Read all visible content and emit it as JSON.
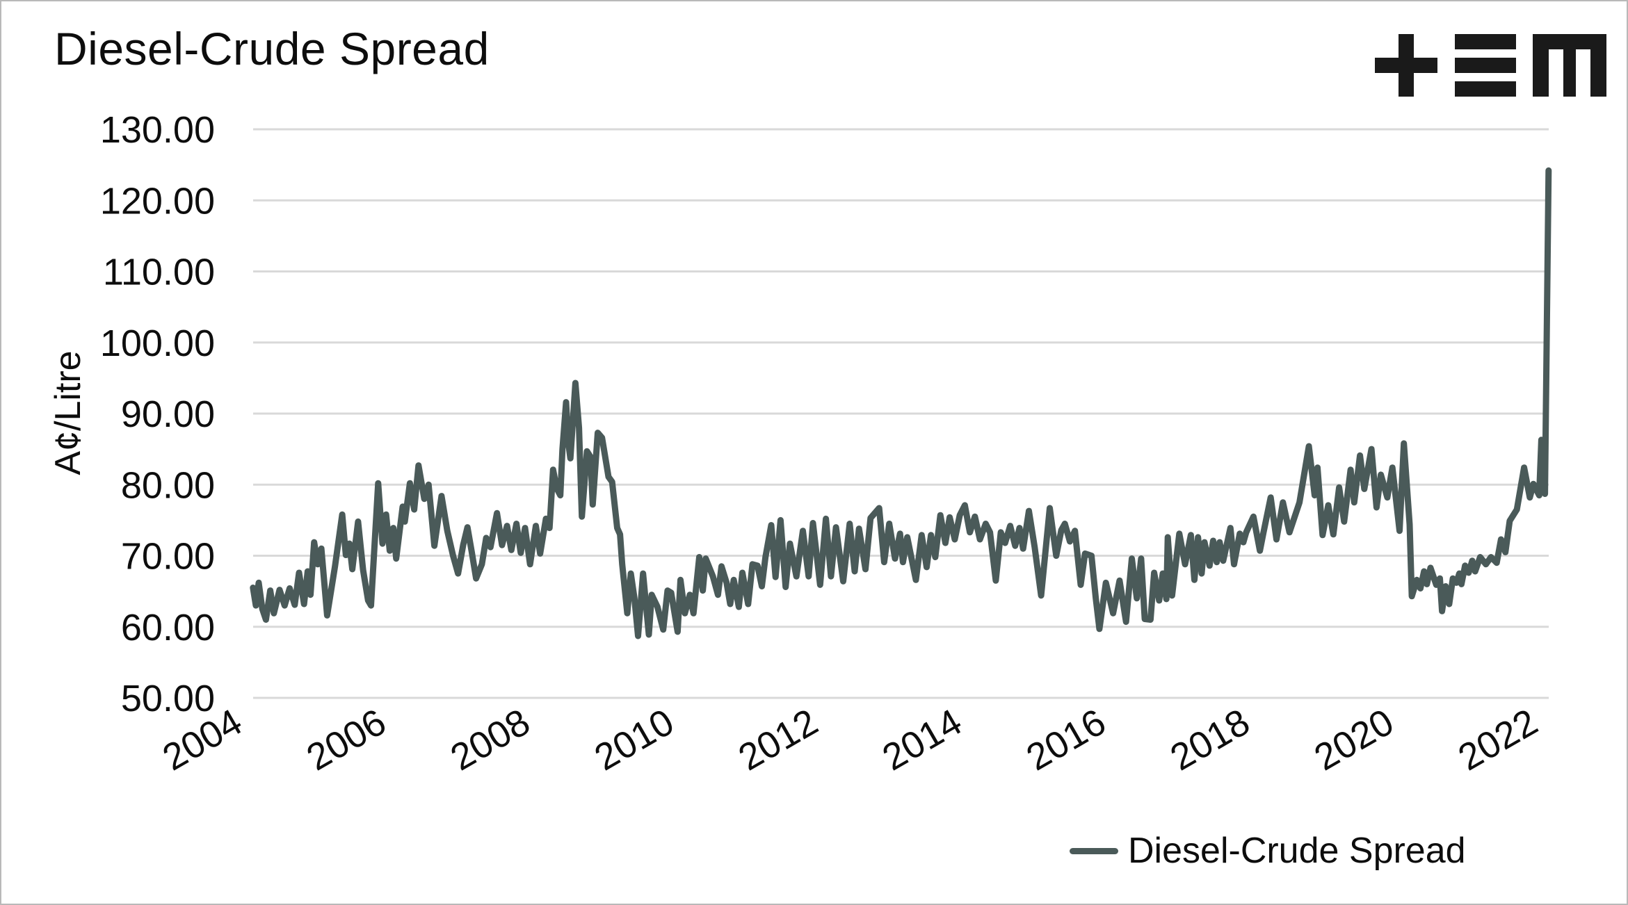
{
  "header": {
    "logo_name": "tem-logo",
    "logo_color": "#1a1a1a"
  },
  "chart_data": {
    "type": "line",
    "title": "Diesel-Crude Spread",
    "xlabel": "",
    "ylabel": "A¢/Litre",
    "grid": true,
    "legend_position": "bottom-right",
    "ylim": [
      50,
      130
    ],
    "y_ticks": [
      130,
      120,
      110,
      100,
      90,
      80,
      70,
      60,
      50
    ],
    "y_tick_labels": [
      "130.00",
      "120.00",
      "110.00",
      "100.00",
      "90.00",
      "80.00",
      "70.00",
      "60.00",
      "50.00"
    ],
    "x_ticks": [
      2004,
      2006,
      2008,
      2010,
      2012,
      2014,
      2016,
      2018,
      2020,
      2022
    ],
    "x_tick_labels": [
      "2004",
      "2006",
      "2008",
      "2010",
      "2012",
      "2014",
      "2016",
      "2018",
      "2020",
      "2022"
    ],
    "x_range": [
      2004.5,
      2022.5
    ],
    "line_color": "#4a5a59",
    "gridline_color": "#d9d9d9",
    "series": [
      {
        "name": "Diesel-Crude Spread",
        "color": "#4a5a59",
        "points": [
          [
            2004.5,
            65.5
          ],
          [
            2004.54,
            63.0
          ],
          [
            2004.58,
            66.2
          ],
          [
            2004.63,
            62.5
          ],
          [
            2004.68,
            61.0
          ],
          [
            2004.74,
            65.1
          ],
          [
            2004.79,
            61.9
          ],
          [
            2004.87,
            65.2
          ],
          [
            2004.94,
            63.0
          ],
          [
            2005.01,
            65.4
          ],
          [
            2005.08,
            63.1
          ],
          [
            2005.14,
            67.6
          ],
          [
            2005.21,
            63.2
          ],
          [
            2005.26,
            67.8
          ],
          [
            2005.3,
            64.5
          ],
          [
            2005.35,
            71.9
          ],
          [
            2005.4,
            68.8
          ],
          [
            2005.45,
            71.0
          ],
          [
            2005.5,
            65.1
          ],
          [
            2005.53,
            61.6
          ],
          [
            2005.64,
            68.5
          ],
          [
            2005.74,
            75.8
          ],
          [
            2005.79,
            70.1
          ],
          [
            2005.84,
            71.7
          ],
          [
            2005.88,
            68.1
          ],
          [
            2005.96,
            74.8
          ],
          [
            2006.03,
            68.0
          ],
          [
            2006.1,
            63.7
          ],
          [
            2006.14,
            63.0
          ],
          [
            2006.24,
            80.2
          ],
          [
            2006.3,
            71.7
          ],
          [
            2006.35,
            75.8
          ],
          [
            2006.4,
            70.7
          ],
          [
            2006.45,
            73.9
          ],
          [
            2006.49,
            69.6
          ],
          [
            2006.58,
            76.9
          ],
          [
            2006.61,
            74.8
          ],
          [
            2006.68,
            80.2
          ],
          [
            2006.74,
            76.5
          ],
          [
            2006.8,
            82.7
          ],
          [
            2006.88,
            78.0
          ],
          [
            2006.94,
            80.0
          ],
          [
            2007.02,
            71.4
          ],
          [
            2007.12,
            78.4
          ],
          [
            2007.2,
            73.5
          ],
          [
            2007.28,
            70.0
          ],
          [
            2007.35,
            67.5
          ],
          [
            2007.42,
            71.5
          ],
          [
            2007.48,
            74.0
          ],
          [
            2007.54,
            70.5
          ],
          [
            2007.6,
            66.8
          ],
          [
            2007.68,
            68.8
          ],
          [
            2007.74,
            72.5
          ],
          [
            2007.8,
            71.2
          ],
          [
            2007.89,
            76.0
          ],
          [
            2007.96,
            71.5
          ],
          [
            2008.03,
            74.2
          ],
          [
            2008.09,
            70.8
          ],
          [
            2008.16,
            74.5
          ],
          [
            2008.22,
            70.4
          ],
          [
            2008.28,
            73.9
          ],
          [
            2008.35,
            68.8
          ],
          [
            2008.43,
            74.2
          ],
          [
            2008.49,
            70.3
          ],
          [
            2008.57,
            75.2
          ],
          [
            2008.62,
            73.9
          ],
          [
            2008.67,
            82.1
          ],
          [
            2008.72,
            79.5
          ],
          [
            2008.77,
            78.5
          ],
          [
            2008.8,
            85.0
          ],
          [
            2008.85,
            91.6
          ],
          [
            2008.88,
            86.0
          ],
          [
            2008.91,
            83.7
          ],
          [
            2008.98,
            94.3
          ],
          [
            2009.03,
            88.0
          ],
          [
            2009.07,
            75.5
          ],
          [
            2009.14,
            84.7
          ],
          [
            2009.19,
            83.9
          ],
          [
            2009.22,
            77.2
          ],
          [
            2009.29,
            87.3
          ],
          [
            2009.35,
            86.6
          ],
          [
            2009.44,
            81.1
          ],
          [
            2009.49,
            80.4
          ],
          [
            2009.56,
            73.9
          ],
          [
            2009.6,
            73.0
          ],
          [
            2009.63,
            68.8
          ],
          [
            2009.7,
            61.9
          ],
          [
            2009.75,
            67.5
          ],
          [
            2009.8,
            64.0
          ],
          [
            2009.85,
            58.7
          ],
          [
            2009.92,
            67.5
          ],
          [
            2010.0,
            58.9
          ],
          [
            2010.04,
            64.5
          ],
          [
            2010.12,
            62.8
          ],
          [
            2010.2,
            59.6
          ],
          [
            2010.26,
            65.1
          ],
          [
            2010.31,
            64.8
          ],
          [
            2010.4,
            59.3
          ],
          [
            2010.44,
            66.6
          ],
          [
            2010.5,
            61.9
          ],
          [
            2010.57,
            64.5
          ],
          [
            2010.62,
            61.9
          ],
          [
            2010.7,
            69.8
          ],
          [
            2010.75,
            65.1
          ],
          [
            2010.79,
            69.6
          ],
          [
            2010.89,
            67.1
          ],
          [
            2010.96,
            64.5
          ],
          [
            2011.01,
            68.5
          ],
          [
            2011.08,
            66.2
          ],
          [
            2011.13,
            63.2
          ],
          [
            2011.18,
            66.6
          ],
          [
            2011.25,
            62.8
          ],
          [
            2011.3,
            67.6
          ],
          [
            2011.38,
            63.2
          ],
          [
            2011.44,
            68.8
          ],
          [
            2011.51,
            68.6
          ],
          [
            2011.57,
            65.7
          ],
          [
            2011.62,
            69.8
          ],
          [
            2011.7,
            74.3
          ],
          [
            2011.76,
            67.0
          ],
          [
            2011.83,
            75.0
          ],
          [
            2011.9,
            65.6
          ],
          [
            2011.96,
            71.7
          ],
          [
            2012.05,
            67.1
          ],
          [
            2012.14,
            73.5
          ],
          [
            2012.22,
            67.1
          ],
          [
            2012.28,
            74.6
          ],
          [
            2012.38,
            65.9
          ],
          [
            2012.46,
            75.2
          ],
          [
            2012.53,
            67.1
          ],
          [
            2012.6,
            74.0
          ],
          [
            2012.7,
            66.4
          ],
          [
            2012.79,
            74.5
          ],
          [
            2012.86,
            67.8
          ],
          [
            2012.92,
            73.8
          ],
          [
            2013.01,
            68.1
          ],
          [
            2013.08,
            75.3
          ],
          [
            2013.2,
            76.7
          ],
          [
            2013.27,
            69.1
          ],
          [
            2013.34,
            74.5
          ],
          [
            2013.42,
            69.6
          ],
          [
            2013.49,
            73.1
          ],
          [
            2013.53,
            69.1
          ],
          [
            2013.59,
            72.6
          ],
          [
            2013.71,
            66.6
          ],
          [
            2013.79,
            72.9
          ],
          [
            2013.86,
            68.4
          ],
          [
            2013.92,
            72.9
          ],
          [
            2013.98,
            69.8
          ],
          [
            2014.05,
            75.7
          ],
          [
            2014.12,
            71.8
          ],
          [
            2014.18,
            75.4
          ],
          [
            2014.25,
            72.3
          ],
          [
            2014.32,
            75.7
          ],
          [
            2014.39,
            77.1
          ],
          [
            2014.46,
            73.3
          ],
          [
            2014.53,
            75.5
          ],
          [
            2014.6,
            72.3
          ],
          [
            2014.68,
            74.5
          ],
          [
            2014.74,
            73.3
          ],
          [
            2014.82,
            66.5
          ],
          [
            2014.89,
            73.3
          ],
          [
            2014.95,
            71.8
          ],
          [
            2015.02,
            74.2
          ],
          [
            2015.09,
            71.4
          ],
          [
            2015.15,
            73.9
          ],
          [
            2015.2,
            71.0
          ],
          [
            2015.28,
            76.3
          ],
          [
            2015.36,
            71.2
          ],
          [
            2015.45,
            64.4
          ],
          [
            2015.57,
            76.7
          ],
          [
            2015.66,
            70.0
          ],
          [
            2015.73,
            73.6
          ],
          [
            2015.78,
            74.5
          ],
          [
            2015.85,
            72.0
          ],
          [
            2015.92,
            73.5
          ],
          [
            2016.0,
            65.9
          ],
          [
            2016.06,
            70.3
          ],
          [
            2016.15,
            70.0
          ],
          [
            2016.21,
            64.0
          ],
          [
            2016.26,
            59.7
          ],
          [
            2016.35,
            66.2
          ],
          [
            2016.45,
            61.9
          ],
          [
            2016.54,
            66.5
          ],
          [
            2016.63,
            60.7
          ],
          [
            2016.71,
            69.6
          ],
          [
            2016.78,
            64.0
          ],
          [
            2016.84,
            69.6
          ],
          [
            2016.89,
            61.1
          ],
          [
            2016.97,
            61.0
          ],
          [
            2017.02,
            67.6
          ],
          [
            2017.09,
            63.7
          ],
          [
            2017.14,
            67.5
          ],
          [
            2017.19,
            63.9
          ],
          [
            2017.21,
            72.6
          ],
          [
            2017.27,
            64.4
          ],
          [
            2017.37,
            73.1
          ],
          [
            2017.45,
            68.8
          ],
          [
            2017.53,
            72.9
          ],
          [
            2017.58,
            66.6
          ],
          [
            2017.63,
            72.6
          ],
          [
            2017.68,
            67.5
          ],
          [
            2017.72,
            71.9
          ],
          [
            2017.79,
            68.6
          ],
          [
            2017.84,
            72.1
          ],
          [
            2017.89,
            69.1
          ],
          [
            2017.93,
            71.9
          ],
          [
            2017.98,
            69.3
          ],
          [
            2018.08,
            73.9
          ],
          [
            2018.13,
            68.8
          ],
          [
            2018.21,
            73.1
          ],
          [
            2018.26,
            71.9
          ],
          [
            2018.3,
            73.3
          ],
          [
            2018.4,
            75.5
          ],
          [
            2018.49,
            70.7
          ],
          [
            2018.54,
            73.3
          ],
          [
            2018.64,
            78.2
          ],
          [
            2018.72,
            72.3
          ],
          [
            2018.81,
            77.5
          ],
          [
            2018.9,
            73.3
          ],
          [
            2019.04,
            77.5
          ],
          [
            2019.17,
            85.4
          ],
          [
            2019.25,
            78.5
          ],
          [
            2019.29,
            82.4
          ],
          [
            2019.36,
            72.9
          ],
          [
            2019.44,
            77.1
          ],
          [
            2019.51,
            73.0
          ],
          [
            2019.59,
            79.6
          ],
          [
            2019.66,
            74.8
          ],
          [
            2019.75,
            82.1
          ],
          [
            2019.8,
            77.5
          ],
          [
            2019.88,
            84.1
          ],
          [
            2019.94,
            79.4
          ],
          [
            2020.04,
            85.0
          ],
          [
            2020.11,
            76.8
          ],
          [
            2020.17,
            81.4
          ],
          [
            2020.26,
            78.2
          ],
          [
            2020.33,
            82.4
          ],
          [
            2020.43,
            73.5
          ],
          [
            2020.49,
            85.8
          ],
          [
            2020.57,
            74.4
          ],
          [
            2020.6,
            64.3
          ],
          [
            2020.67,
            66.6
          ],
          [
            2020.72,
            65.4
          ],
          [
            2020.77,
            67.8
          ],
          [
            2020.81,
            66.0
          ],
          [
            2020.86,
            68.3
          ],
          [
            2020.94,
            65.9
          ],
          [
            2020.99,
            66.8
          ],
          [
            2021.02,
            62.2
          ],
          [
            2021.07,
            65.7
          ],
          [
            2021.12,
            63.2
          ],
          [
            2021.17,
            66.8
          ],
          [
            2021.22,
            66.2
          ],
          [
            2021.26,
            67.5
          ],
          [
            2021.29,
            66.0
          ],
          [
            2021.34,
            68.6
          ],
          [
            2021.39,
            67.6
          ],
          [
            2021.44,
            69.3
          ],
          [
            2021.48,
            67.8
          ],
          [
            2021.55,
            69.8
          ],
          [
            2021.63,
            68.8
          ],
          [
            2021.7,
            69.8
          ],
          [
            2021.78,
            69.0
          ],
          [
            2021.84,
            72.3
          ],
          [
            2021.9,
            70.5
          ],
          [
            2021.96,
            74.9
          ],
          [
            2022.06,
            76.5
          ],
          [
            2022.16,
            82.4
          ],
          [
            2022.24,
            78.2
          ],
          [
            2022.29,
            80.1
          ],
          [
            2022.37,
            78.5
          ],
          [
            2022.4,
            86.3
          ],
          [
            2022.45,
            78.7
          ],
          [
            2022.5,
            124.2
          ]
        ]
      }
    ],
    "legend": [
      {
        "label": "Diesel-Crude Spread",
        "color": "#4a5a59"
      }
    ]
  }
}
